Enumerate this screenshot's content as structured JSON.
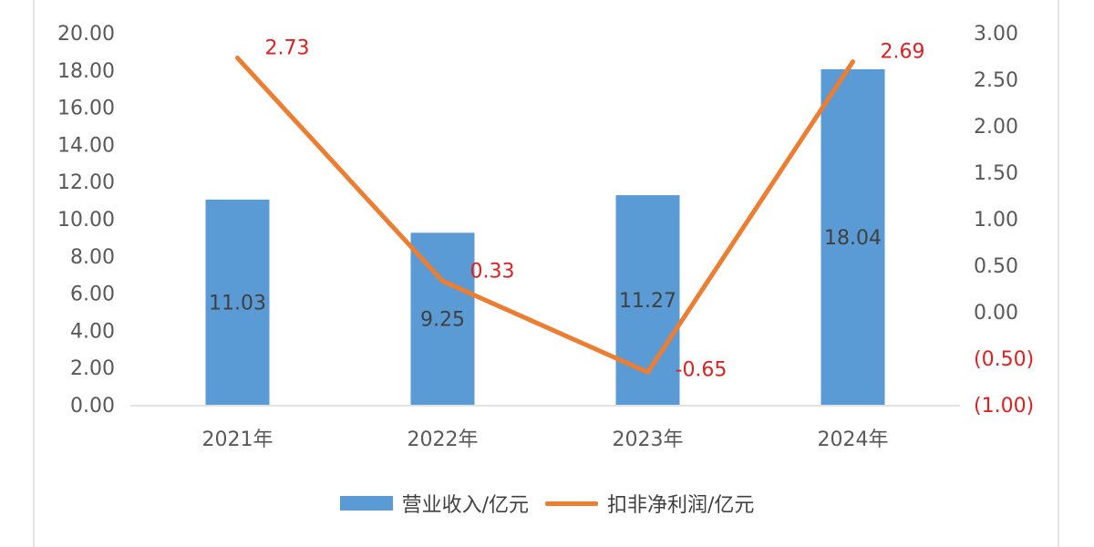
{
  "chart_data": {
    "type": "bar+line",
    "categories": [
      "2021年",
      "2022年",
      "2023年",
      "2024年"
    ],
    "series": [
      {
        "name": "营业收入/亿元",
        "type": "bar",
        "axis": "left",
        "values": [
          11.03,
          9.25,
          11.27,
          18.04
        ],
        "labels": [
          "11.03",
          "9.25",
          "11.27",
          "18.04"
        ],
        "color": "#5b9bd5"
      },
      {
        "name": "扣非净利润/亿元",
        "type": "line",
        "axis": "right",
        "values": [
          2.73,
          0.33,
          -0.65,
          2.69
        ],
        "labels": [
          "2.73",
          "0.33",
          "-0.65",
          "2.69"
        ],
        "color": "#ed7d31",
        "label_color": "#e02020"
      }
    ],
    "y_left": {
      "min": 0,
      "max": 20,
      "ticks": [
        {
          "value": 20,
          "label": "20.00"
        },
        {
          "value": 18,
          "label": "18.00"
        },
        {
          "value": 16,
          "label": "16.00"
        },
        {
          "value": 14,
          "label": "14.00"
        },
        {
          "value": 12,
          "label": "12.00"
        },
        {
          "value": 10,
          "label": "10.00"
        },
        {
          "value": 8,
          "label": "8.00"
        },
        {
          "value": 6,
          "label": "6.00"
        },
        {
          "value": 4,
          "label": "4.00"
        },
        {
          "value": 2,
          "label": "2.00"
        },
        {
          "value": 0,
          "label": "0.00"
        }
      ]
    },
    "y_right": {
      "min": -1,
      "max": 3,
      "ticks": [
        {
          "value": 3,
          "label": "3.00"
        },
        {
          "value": 2.5,
          "label": "2.50"
        },
        {
          "value": 2,
          "label": "2.00"
        },
        {
          "value": 1.5,
          "label": "1.50"
        },
        {
          "value": 1,
          "label": "1.00"
        },
        {
          "value": 0.5,
          "label": "0.50"
        },
        {
          "value": 0,
          "label": "0.00"
        },
        {
          "value": -0.5,
          "label": "(0.50)"
        },
        {
          "value": -1,
          "label": "(1.00)"
        }
      ]
    },
    "grid": false,
    "legend_position": "bottom"
  }
}
